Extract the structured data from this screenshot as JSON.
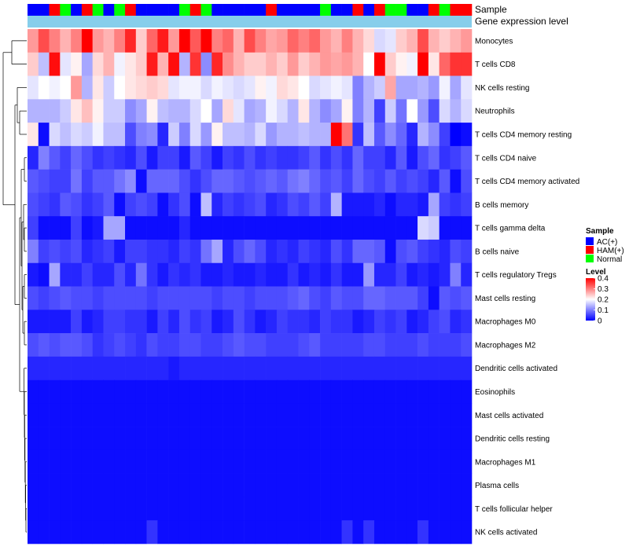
{
  "chart_data": {
    "type": "heatmap",
    "title": "",
    "annotation_tracks": [
      {
        "name": "Sample",
        "values": [
          "AC(+)",
          "AC(+)",
          "HAM(+)",
          "Normal",
          "AC(+)",
          "HAM(+)",
          "Normal",
          "AC(+)",
          "Normal",
          "HAM(+)",
          "AC(+)",
          "AC(+)",
          "AC(+)",
          "AC(+)",
          "Normal",
          "HAM(+)",
          "Normal",
          "AC(+)",
          "AC(+)",
          "AC(+)",
          "AC(+)",
          "AC(+)",
          "HAM(+)",
          "AC(+)",
          "AC(+)",
          "AC(+)",
          "AC(+)",
          "Normal",
          "AC(+)",
          "AC(+)",
          "HAM(+)",
          "AC(+)",
          "HAM(+)",
          "Normal",
          "Normal",
          "AC(+)",
          "AC(+)",
          "HAM(+)",
          "Normal",
          "HAM(+)",
          "HAM(+)"
        ]
      },
      {
        "name": "Gene expression level",
        "values": "all-same"
      }
    ],
    "rows": [
      "Monocytes",
      "T cells CD8",
      "NK cells resting",
      "Neutrophils",
      "T cells CD4 memory resting",
      "T cells CD4 naive",
      "T cells CD4 memory activated",
      "B cells memory",
      "T cells gamma delta",
      "B cells naive",
      "T cells regulatory  Tregs",
      "Mast cells resting",
      "Macrophages M0",
      "Macrophages M2",
      "Dendritic cells activated",
      "Eosinophils",
      "Mast cells activated",
      "Dendritic cells resting",
      "Macrophages M1",
      "Plasma cells",
      "T cells follicular helper",
      "NK cells activated"
    ],
    "values": [
      [
        0.28,
        0.34,
        0.3,
        0.26,
        0.3,
        0.4,
        0.28,
        0.26,
        0.3,
        0.37,
        0.24,
        0.32,
        0.38,
        0.28,
        0.4,
        0.33,
        0.4,
        0.3,
        0.32,
        0.26,
        0.34,
        0.3,
        0.27,
        0.28,
        0.32,
        0.3,
        0.32,
        0.28,
        0.26,
        0.3,
        0.26,
        0.23,
        0.17,
        0.18,
        0.24,
        0.26,
        0.34,
        0.26,
        0.24,
        0.26,
        0.28
      ],
      [
        0.24,
        0.15,
        0.39,
        0.18,
        0.21,
        0.13,
        0.23,
        0.26,
        0.19,
        0.22,
        0.24,
        0.38,
        0.26,
        0.39,
        0.14,
        0.36,
        0.11,
        0.37,
        0.29,
        0.26,
        0.24,
        0.24,
        0.26,
        0.24,
        0.28,
        0.24,
        0.26,
        0.28,
        0.27,
        0.28,
        0.26,
        0.2,
        0.4,
        0.24,
        0.21,
        0.19,
        0.4,
        0.22,
        0.32,
        0.36,
        0.36
      ],
      [
        0.18,
        0.2,
        0.19,
        0.2,
        0.28,
        0.14,
        0.22,
        0.16,
        0.2,
        0.22,
        0.23,
        0.24,
        0.23,
        0.18,
        0.19,
        0.19,
        0.17,
        0.19,
        0.18,
        0.17,
        0.18,
        0.21,
        0.19,
        0.23,
        0.22,
        0.2,
        0.17,
        0.18,
        0.19,
        0.18,
        0.1,
        0.14,
        0.16,
        0.27,
        0.13,
        0.13,
        0.14,
        0.12,
        0.19,
        0.13,
        0.18
      ],
      [
        0.14,
        0.14,
        0.14,
        0.16,
        0.22,
        0.25,
        0.21,
        0.16,
        0.16,
        0.11,
        0.13,
        0.21,
        0.15,
        0.14,
        0.14,
        0.17,
        0.2,
        0.13,
        0.23,
        0.18,
        0.13,
        0.14,
        0.19,
        0.17,
        0.14,
        0.22,
        0.14,
        0.11,
        0.13,
        0.21,
        0.1,
        0.14,
        0.05,
        0.16,
        0.09,
        0.2,
        0.12,
        0.06,
        0.17,
        0.14,
        0.17
      ],
      [
        0.22,
        0.01,
        0.17,
        0.15,
        0.17,
        0.16,
        0.19,
        0.15,
        0.15,
        0.06,
        0.1,
        0.11,
        0.03,
        0.16,
        0.1,
        0.17,
        0.12,
        0.21,
        0.15,
        0.15,
        0.14,
        0.17,
        0.12,
        0.14,
        0.14,
        0.15,
        0.14,
        0.14,
        0.4,
        0.31,
        0.04,
        0.15,
        0.07,
        0.11,
        0.08,
        0.03,
        0.14,
        0.11,
        0.05,
        0.0,
        0.01
      ],
      [
        0.03,
        0.1,
        0.07,
        0.05,
        0.08,
        0.06,
        0.04,
        0.05,
        0.04,
        0.03,
        0.06,
        0.02,
        0.05,
        0.05,
        0.02,
        0.07,
        0.05,
        0.02,
        0.05,
        0.04,
        0.06,
        0.04,
        0.05,
        0.04,
        0.04,
        0.05,
        0.07,
        0.04,
        0.06,
        0.04,
        0.08,
        0.05,
        0.05,
        0.03,
        0.07,
        0.02,
        0.06,
        0.08,
        0.04,
        0.05,
        0.07
      ],
      [
        0.07,
        0.06,
        0.05,
        0.05,
        0.09,
        0.05,
        0.07,
        0.07,
        0.09,
        0.11,
        0.01,
        0.08,
        0.08,
        0.08,
        0.06,
        0.04,
        0.06,
        0.08,
        0.08,
        0.07,
        0.06,
        0.07,
        0.08,
        0.07,
        0.09,
        0.1,
        0.08,
        0.06,
        0.07,
        0.05,
        0.08,
        0.06,
        0.05,
        0.07,
        0.05,
        0.06,
        0.05,
        0.03,
        0.07,
        0.01,
        0.06
      ],
      [
        0.06,
        0.05,
        0.04,
        0.07,
        0.06,
        0.04,
        0.05,
        0.07,
        0.01,
        0.05,
        0.06,
        0.05,
        0.01,
        0.04,
        0.06,
        0.01,
        0.15,
        0.03,
        0.05,
        0.04,
        0.05,
        0.06,
        0.03,
        0.04,
        0.06,
        0.05,
        0.07,
        0.05,
        0.14,
        0.02,
        0.02,
        0.02,
        0.03,
        0.01,
        0.03,
        0.03,
        0.02,
        0.13,
        0.05,
        0.04,
        0.05
      ],
      [
        0.05,
        0.01,
        0.01,
        0.01,
        0.05,
        0.01,
        0.02,
        0.13,
        0.13,
        0.01,
        0.01,
        0.01,
        0.01,
        0.01,
        0.03,
        0.01,
        0.01,
        0.01,
        0.01,
        0.01,
        0.01,
        0.01,
        0.01,
        0.01,
        0.01,
        0.01,
        0.01,
        0.01,
        0.01,
        0.01,
        0.01,
        0.01,
        0.01,
        0.01,
        0.01,
        0.01,
        0.17,
        0.16,
        0.01,
        0.01,
        0.01
      ],
      [
        0.1,
        0.05,
        0.06,
        0.05,
        0.06,
        0.03,
        0.04,
        0.05,
        0.02,
        0.05,
        0.05,
        0.04,
        0.04,
        0.03,
        0.05,
        0.04,
        0.09,
        0.13,
        0.03,
        0.06,
        0.08,
        0.06,
        0.03,
        0.04,
        0.03,
        0.05,
        0.04,
        0.03,
        0.06,
        0.04,
        0.08,
        0.08,
        0.07,
        0.01,
        0.06,
        0.07,
        0.05,
        0.04,
        0.03,
        0.06,
        0.05
      ],
      [
        0.02,
        0.01,
        0.13,
        0.03,
        0.03,
        0.05,
        0.03,
        0.03,
        0.06,
        0.03,
        0.09,
        0.04,
        0.02,
        0.04,
        0.03,
        0.04,
        0.02,
        0.02,
        0.03,
        0.02,
        0.02,
        0.03,
        0.02,
        0.02,
        0.04,
        0.02,
        0.03,
        0.02,
        0.04,
        0.02,
        0.02,
        0.12,
        0.03,
        0.03,
        0.05,
        0.02,
        0.03,
        0.02,
        0.03,
        0.1,
        0.03
      ],
      [
        0.06,
        0.05,
        0.06,
        0.07,
        0.06,
        0.06,
        0.05,
        0.06,
        0.06,
        0.06,
        0.06,
        0.05,
        0.06,
        0.06,
        0.06,
        0.06,
        0.06,
        0.05,
        0.06,
        0.06,
        0.05,
        0.06,
        0.06,
        0.06,
        0.07,
        0.08,
        0.06,
        0.05,
        0.07,
        0.06,
        0.06,
        0.08,
        0.08,
        0.07,
        0.07,
        0.07,
        0.05,
        0.01,
        0.07,
        0.06,
        0.07
      ],
      [
        0.02,
        0.02,
        0.02,
        0.02,
        0.05,
        0.02,
        0.03,
        0.05,
        0.05,
        0.04,
        0.04,
        0.02,
        0.05,
        0.03,
        0.06,
        0.04,
        0.05,
        0.02,
        0.03,
        0.06,
        0.04,
        0.02,
        0.03,
        0.05,
        0.04,
        0.04,
        0.03,
        0.05,
        0.04,
        0.04,
        0.02,
        0.03,
        0.05,
        0.04,
        0.05,
        0.02,
        0.03,
        0.05,
        0.06,
        0.03,
        0.04
      ],
      [
        0.06,
        0.07,
        0.06,
        0.07,
        0.07,
        0.06,
        0.04,
        0.05,
        0.06,
        0.05,
        0.04,
        0.06,
        0.05,
        0.05,
        0.06,
        0.06,
        0.05,
        0.05,
        0.06,
        0.07,
        0.06,
        0.06,
        0.05,
        0.05,
        0.05,
        0.06,
        0.07,
        0.05,
        0.05,
        0.05,
        0.05,
        0.06,
        0.06,
        0.05,
        0.05,
        0.05,
        0.06,
        0.05,
        0.05,
        0.05,
        0.06
      ],
      [
        0.03,
        0.03,
        0.03,
        0.03,
        0.03,
        0.03,
        0.03,
        0.03,
        0.03,
        0.03,
        0.03,
        0.03,
        0.03,
        0.02,
        0.03,
        0.03,
        0.03,
        0.03,
        0.03,
        0.03,
        0.03,
        0.03,
        0.03,
        0.03,
        0.03,
        0.03,
        0.03,
        0.03,
        0.03,
        0.03,
        0.03,
        0.03,
        0.03,
        0.03,
        0.03,
        0.03,
        0.03,
        0.03,
        0.03,
        0.03,
        0.03
      ],
      [
        0.01,
        0.01,
        0.01,
        0.01,
        0.01,
        0.01,
        0.01,
        0.01,
        0.01,
        0.01,
        0.01,
        0.01,
        0.01,
        0.01,
        0.01,
        0.01,
        0.01,
        0.01,
        0.01,
        0.01,
        0.01,
        0.01,
        0.01,
        0.01,
        0.01,
        0.01,
        0.01,
        0.01,
        0.01,
        0.01,
        0.01,
        0.01,
        0.01,
        0.01,
        0.01,
        0.01,
        0.01,
        0.01,
        0.01,
        0.01,
        0.01
      ],
      [
        0.01,
        0.01,
        0.01,
        0.01,
        0.01,
        0.01,
        0.01,
        0.01,
        0.01,
        0.01,
        0.01,
        0.01,
        0.01,
        0.01,
        0.01,
        0.01,
        0.01,
        0.01,
        0.01,
        0.01,
        0.01,
        0.01,
        0.01,
        0.01,
        0.01,
        0.01,
        0.01,
        0.01,
        0.01,
        0.01,
        0.01,
        0.01,
        0.01,
        0.01,
        0.01,
        0.01,
        0.01,
        0.01,
        0.01,
        0.01,
        0.01
      ],
      [
        0.01,
        0.01,
        0.01,
        0.01,
        0.01,
        0.01,
        0.01,
        0.01,
        0.01,
        0.01,
        0.01,
        0.01,
        0.01,
        0.01,
        0.01,
        0.01,
        0.01,
        0.01,
        0.01,
        0.01,
        0.01,
        0.01,
        0.01,
        0.01,
        0.01,
        0.01,
        0.01,
        0.01,
        0.01,
        0.01,
        0.01,
        0.01,
        0.01,
        0.01,
        0.01,
        0.01,
        0.01,
        0.01,
        0.01,
        0.01,
        0.01
      ],
      [
        0.01,
        0.01,
        0.01,
        0.01,
        0.01,
        0.01,
        0.01,
        0.01,
        0.01,
        0.01,
        0.01,
        0.01,
        0.01,
        0.01,
        0.01,
        0.01,
        0.01,
        0.01,
        0.01,
        0.01,
        0.01,
        0.01,
        0.01,
        0.01,
        0.01,
        0.01,
        0.01,
        0.01,
        0.01,
        0.01,
        0.01,
        0.01,
        0.01,
        0.01,
        0.01,
        0.01,
        0.01,
        0.01,
        0.01,
        0.01,
        0.01
      ],
      [
        0.01,
        0.01,
        0.01,
        0.01,
        0.01,
        0.01,
        0.01,
        0.01,
        0.01,
        0.01,
        0.01,
        0.01,
        0.01,
        0.01,
        0.01,
        0.01,
        0.01,
        0.01,
        0.01,
        0.01,
        0.01,
        0.01,
        0.01,
        0.01,
        0.01,
        0.01,
        0.01,
        0.01,
        0.01,
        0.01,
        0.01,
        0.01,
        0.01,
        0.01,
        0.01,
        0.01,
        0.01,
        0.01,
        0.01,
        0.01,
        0.01
      ],
      [
        0.01,
        0.01,
        0.01,
        0.01,
        0.01,
        0.01,
        0.01,
        0.01,
        0.01,
        0.01,
        0.01,
        0.01,
        0.01,
        0.01,
        0.01,
        0.01,
        0.01,
        0.01,
        0.01,
        0.01,
        0.01,
        0.01,
        0.01,
        0.01,
        0.01,
        0.01,
        0.01,
        0.01,
        0.01,
        0.01,
        0.01,
        0.01,
        0.01,
        0.01,
        0.01,
        0.01,
        0.01,
        0.01,
        0.01,
        0.01,
        0.01
      ],
      [
        0.01,
        0.01,
        0.01,
        0.01,
        0.01,
        0.01,
        0.01,
        0.01,
        0.01,
        0.01,
        0.01,
        0.04,
        0.01,
        0.01,
        0.01,
        0.01,
        0.01,
        0.01,
        0.01,
        0.01,
        0.01,
        0.01,
        0.01,
        0.01,
        0.01,
        0.01,
        0.01,
        0.01,
        0.01,
        0.04,
        0.01,
        0.04,
        0.01,
        0.01,
        0.01,
        0.01,
        0.04,
        0.01,
        0.01,
        0.01,
        0.01
      ]
    ],
    "legends": [
      {
        "title": "Sample",
        "entries": [
          {
            "label": "AC(+)",
            "color": "#0000ff"
          },
          {
            "label": "HAM(+)",
            "color": "#ff0000"
          },
          {
            "label": "Normal",
            "color": "#00ff00"
          }
        ]
      },
      {
        "title": "Level",
        "type": "colorbar",
        "ticks": [
          "0",
          "0.1",
          "0.2",
          "0.3",
          "0.4"
        ],
        "range": [
          0,
          0.4
        ],
        "colors": {
          "low": "#0000ff",
          "mid": "#ffffff",
          "high": "#ff0000",
          "mid_value": 0.2
        }
      }
    ],
    "annotation_colors": {
      "AC(+)": "#0000ff",
      "HAM(+)": "#ff0000",
      "Normal": "#00ff00",
      "Gene expression level": "#87ceeb"
    },
    "dendrogram": {
      "side": "left",
      "rows": true
    }
  }
}
